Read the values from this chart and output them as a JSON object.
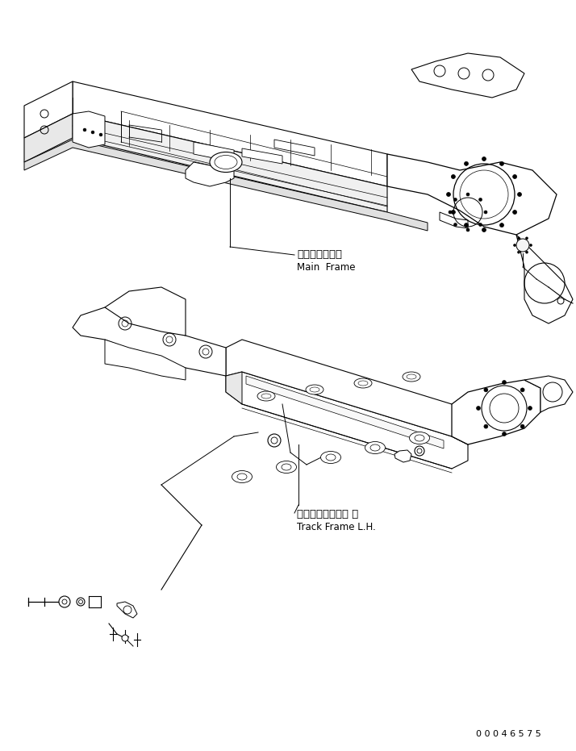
{
  "title": "",
  "background_color": "#ffffff",
  "line_color": "#000000",
  "fig_width": 7.14,
  "fig_height": 9.31,
  "dpi": 100,
  "label_main_frame_jp": "メインフレーム",
  "label_main_frame_en": "Main  Frame",
  "label_track_frame_jp": "トラックフレーム 左",
  "label_track_frame_en": "Track Frame L.H.",
  "part_number": "0 0 0 4 6 5 7 5",
  "font_size_labels": 9,
  "font_size_part_number": 8
}
